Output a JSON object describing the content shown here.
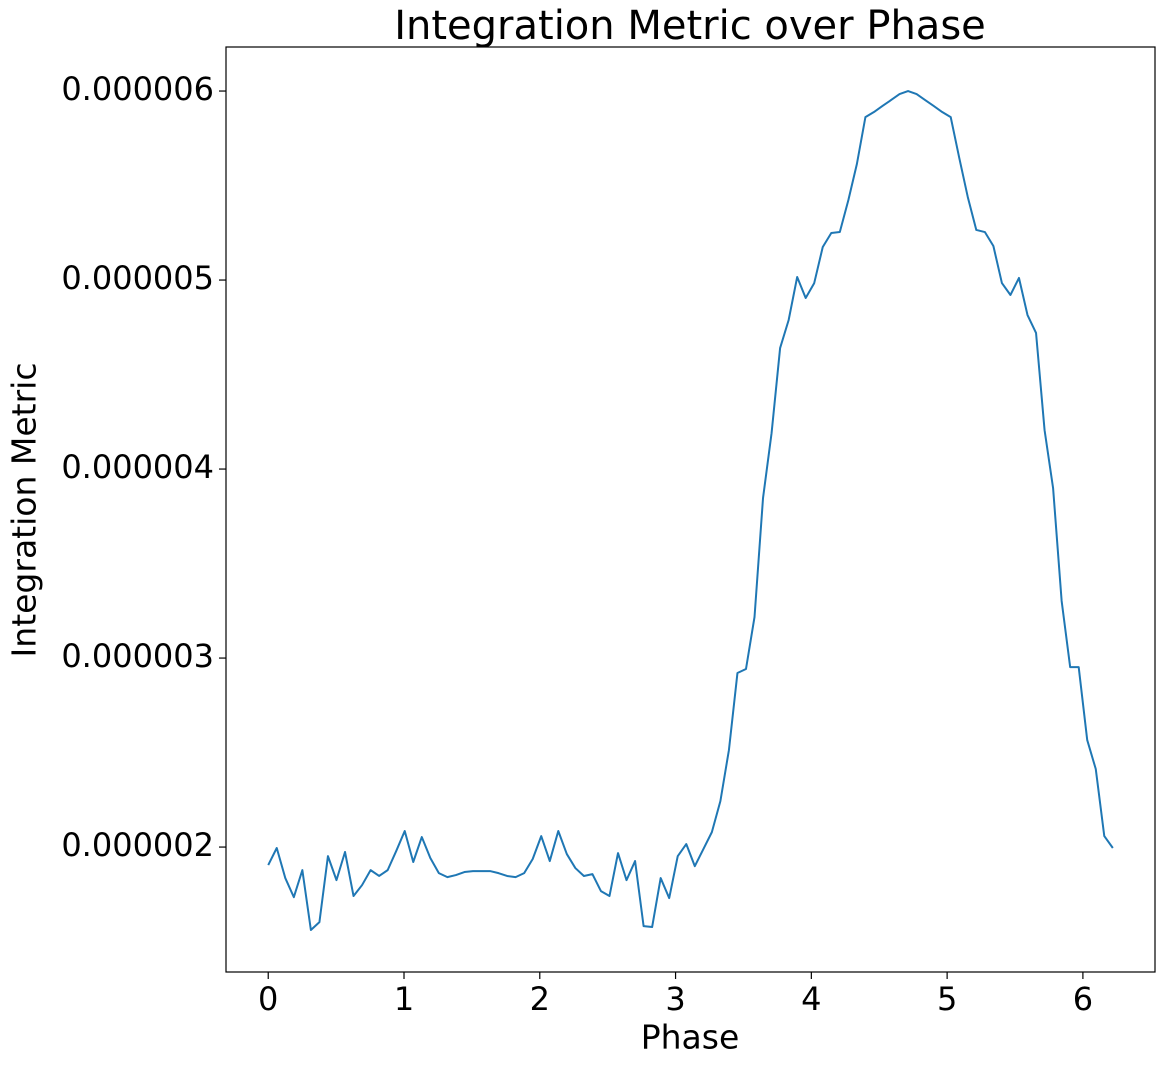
{
  "chart_data": {
    "type": "line",
    "title": "Integration Metric over Phase",
    "x_label": "Phase",
    "y_label": "Integration Metric",
    "x": [
      0,
      0.0628,
      0.1257,
      0.1885,
      0.2513,
      0.3142,
      0.377,
      0.4398,
      0.5027,
      0.5655,
      0.6283,
      0.6912,
      0.754,
      0.8168,
      0.8796,
      0.9425,
      1.0053,
      1.0681,
      1.131,
      1.1938,
      1.2566,
      1.3195,
      1.3823,
      1.4451,
      1.508,
      1.5708,
      1.6336,
      1.6965,
      1.7593,
      1.8221,
      1.885,
      1.9478,
      2.0106,
      2.0735,
      2.1363,
      2.1991,
      2.2619,
      2.3248,
      2.3876,
      2.4504,
      2.5133,
      2.5761,
      2.6389,
      2.7018,
      2.7646,
      2.8274,
      2.8903,
      2.9531,
      3.0159,
      3.0788,
      3.1416,
      3.2044,
      3.2673,
      3.3301,
      3.3929,
      3.4558,
      3.5186,
      3.5814,
      3.6442,
      3.7071,
      3.7699,
      3.8327,
      3.8956,
      3.9584,
      4.0212,
      4.0841,
      4.1469,
      4.2097,
      4.2726,
      4.3354,
      4.3982,
      4.4611,
      4.5239,
      4.5867,
      4.6496,
      4.7124,
      4.7752,
      4.8381,
      4.9009,
      4.9637,
      5.0265,
      5.0894,
      5.1522,
      5.215,
      5.2779,
      5.3407,
      5.4035,
      5.4664,
      5.5292,
      5.592,
      5.6549,
      5.7177,
      5.7805,
      5.8434,
      5.9062,
      5.969,
      6.0319,
      6.0947,
      6.1575,
      6.2204
    ],
    "series": [
      {
        "color": "#1f77b4",
        "values": [
          1.905e-06,
          1.995e-06,
          1.836e-06,
          1.735e-06,
          1.878e-06,
          1.561e-06,
          1.603e-06,
          1.952e-06,
          1.825e-06,
          1.974e-06,
          1.741e-06,
          1.799e-06,
          1.878e-06,
          1.847e-06,
          1.878e-06,
          1.979e-06,
          2.085e-06,
          1.921e-06,
          2.053e-06,
          1.942e-06,
          1.862e-06,
          1.841e-06,
          1.852e-06,
          1.868e-06,
          1.873e-06,
          1.873e-06,
          1.873e-06,
          1.862e-06,
          1.847e-06,
          1.841e-06,
          1.862e-06,
          1.937e-06,
          2.058e-06,
          1.926e-06,
          2.085e-06,
          1.963e-06,
          1.889e-06,
          1.847e-06,
          1.857e-06,
          1.767e-06,
          1.741e-06,
          1.968e-06,
          1.825e-06,
          1.926e-06,
          1.582e-06,
          1.577e-06,
          1.836e-06,
          1.73e-06,
          1.952e-06,
          2.016e-06,
          1.899e-06,
          1.989e-06,
          2.079e-06,
          2.243e-06,
          2.513e-06,
          2.921e-06,
          2.942e-06,
          3.217e-06,
          3.847e-06,
          4.19e-06,
          4.64e-06,
          4.788e-06,
          5.016e-06,
          4.905e-06,
          4.984e-06,
          5.175e-06,
          5.249e-06,
          5.254e-06,
          5.423e-06,
          5.614e-06,
          5.862e-06,
          5.889e-06,
          5.921e-06,
          5.952e-06,
          5.984e-06,
          6e-06,
          5.984e-06,
          5.952e-06,
          5.921e-06,
          5.889e-06,
          5.862e-06,
          5.646e-06,
          5.439e-06,
          5.265e-06,
          5.254e-06,
          5.18e-06,
          4.984e-06,
          4.921e-06,
          5.011e-06,
          4.815e-06,
          4.72e-06,
          4.206e-06,
          3.899e-06,
          3.302e-06,
          2.952e-06,
          2.952e-06,
          2.566e-06,
          2.413e-06,
          2.058e-06,
          1.995e-06
        ]
      }
    ],
    "xlim": [
      -0.311,
      6.531
    ],
    "ylim": [
      1.339e-06,
      6.233e-06
    ],
    "xticks": [
      0,
      1,
      2,
      3,
      4,
      5,
      6
    ],
    "yticks": [
      2e-06,
      3e-06,
      4e-06,
      5e-06,
      6e-06
    ]
  }
}
